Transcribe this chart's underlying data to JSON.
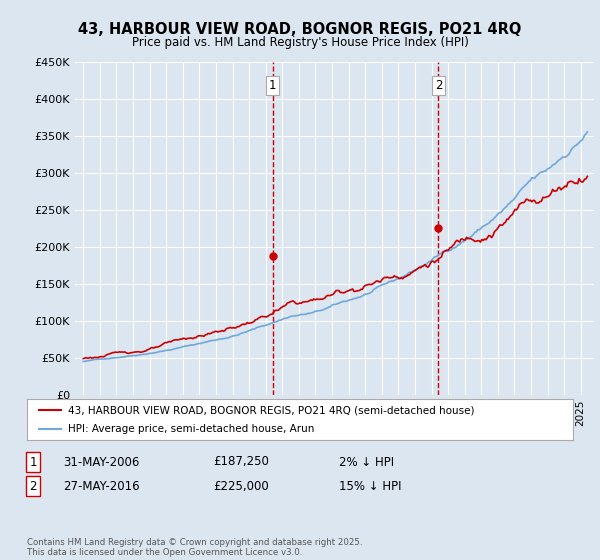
{
  "title": "43, HARBOUR VIEW ROAD, BOGNOR REGIS, PO21 4RQ",
  "subtitle": "Price paid vs. HM Land Registry's House Price Index (HPI)",
  "ylim": [
    0,
    450000
  ],
  "yticks": [
    0,
    50000,
    100000,
    150000,
    200000,
    250000,
    300000,
    350000,
    400000,
    450000
  ],
  "ytick_labels": [
    "£0",
    "£50K",
    "£100K",
    "£150K",
    "£200K",
    "£250K",
    "£300K",
    "£350K",
    "£400K",
    "£450K"
  ],
  "sale1_date": 2006.42,
  "sale1_price": 187250,
  "sale2_date": 2016.42,
  "sale2_price": 225000,
  "hpi_color": "#6fa8dc",
  "price_color": "#cc0000",
  "background_color": "#dce6f1",
  "legend_text1": "43, HARBOUR VIEW ROAD, BOGNOR REGIS, PO21 4RQ (semi-detached house)",
  "legend_text2": "HPI: Average price, semi-detached house, Arun",
  "footnote": "Contains HM Land Registry data © Crown copyright and database right 2025.\nThis data is licensed under the Open Government Licence v3.0.",
  "table_row1": [
    "1",
    "31-MAY-2006",
    "£187,250",
    "2% ↓ HPI"
  ],
  "table_row2": [
    "2",
    "27-MAY-2016",
    "£225,000",
    "15% ↓ HPI"
  ],
  "xlim_start": 1994.5,
  "xlim_end": 2025.8
}
